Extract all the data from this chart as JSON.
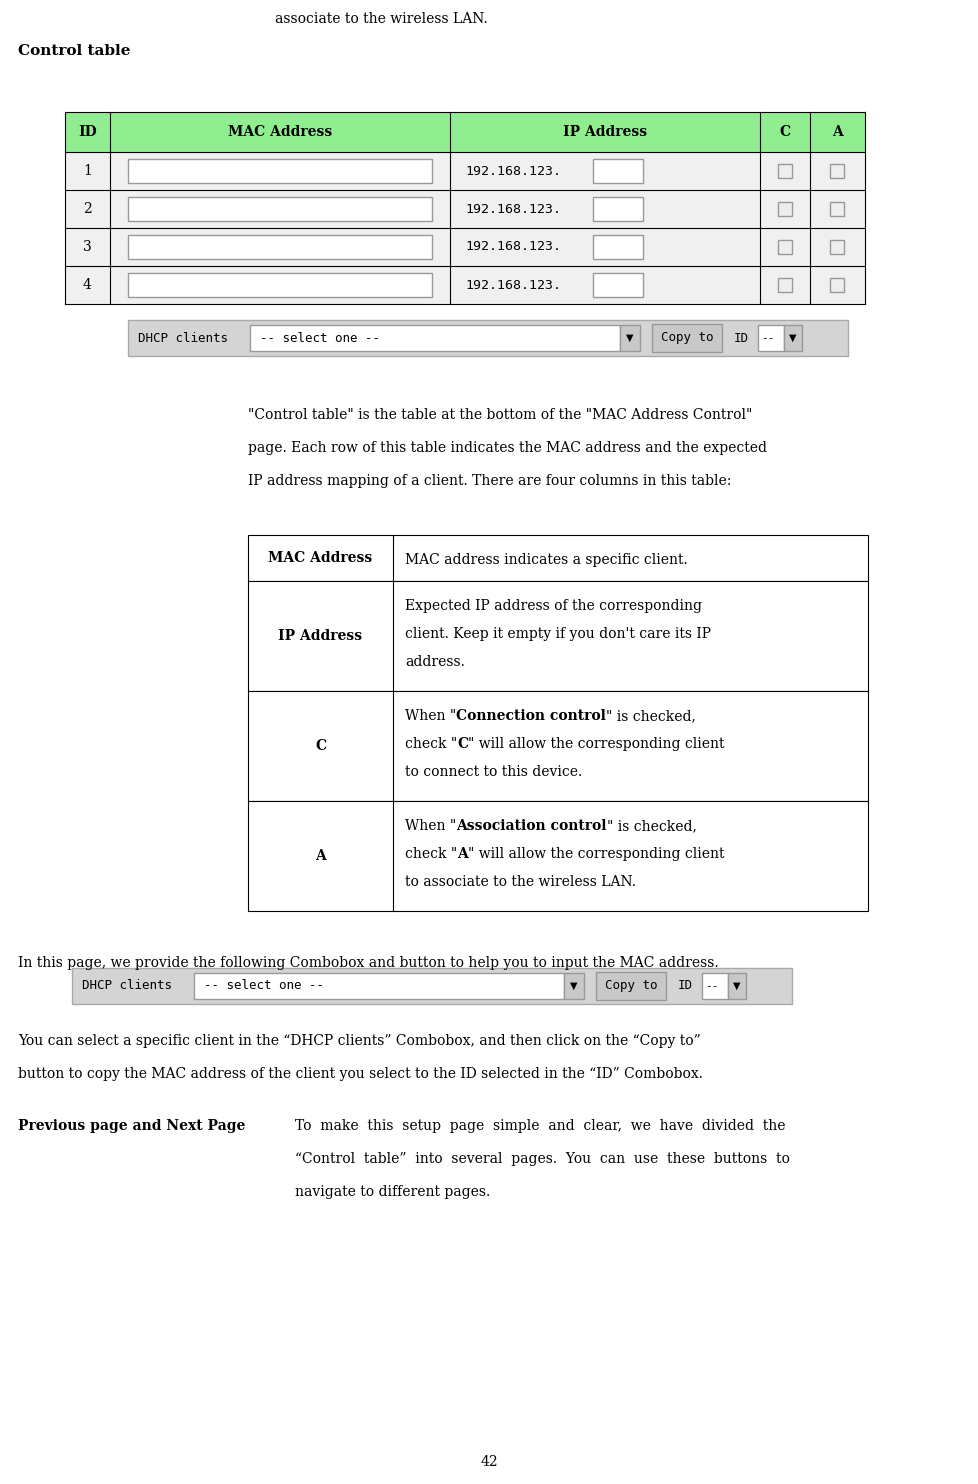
{
  "page_width": 9.79,
  "page_height": 14.84,
  "bg_color": "#ffffff",
  "top_text": "associate to the wireless LAN.",
  "control_table_label": "Control table",
  "header_bg": "#90EE90",
  "header_text_color": "#000000",
  "row_bg": "#f0f0f0",
  "control_table_headers": [
    "ID",
    "MAC Address",
    "IP Address",
    "C",
    "A"
  ],
  "control_table_rows": [
    {
      "id": "1",
      "ip_prefix": "192.168.123."
    },
    {
      "id": "2",
      "ip_prefix": "192.168.123."
    },
    {
      "id": "3",
      "ip_prefix": "192.168.123."
    },
    {
      "id": "4",
      "ip_prefix": "192.168.123."
    }
  ],
  "desc_text_lines": [
    "\"Control table\" is the table at the bottom of the \"MAC Address Control\"",
    "page. Each row of this table indicates the MAC address and the expected",
    "IP address mapping of a client. There are four columns in this table:"
  ],
  "info_table_rows": [
    {
      "label": "MAC Address",
      "label_bold": true,
      "label_italic": false,
      "lines": [
        [
          {
            "t": "MAC address indicates a specific client.",
            "b": false
          }
        ]
      ]
    },
    {
      "label": "IP Address",
      "label_bold": true,
      "label_italic": false,
      "lines": [
        [
          {
            "t": "Expected IP address of the corresponding",
            "b": false
          }
        ],
        [
          {
            "t": "client. Keep it empty if you don't care its IP",
            "b": false
          }
        ],
        [
          {
            "t": "address.",
            "b": false
          }
        ]
      ]
    },
    {
      "label": "C",
      "label_bold": true,
      "label_italic": false,
      "lines": [
        [
          {
            "t": "When \"",
            "b": false
          },
          {
            "t": "Connection control",
            "b": true
          },
          {
            "t": "\" is checked,",
            "b": false
          }
        ],
        [
          {
            "t": "check \"",
            "b": false
          },
          {
            "t": "C",
            "b": true
          },
          {
            "t": "\" will allow the corresponding client",
            "b": false
          }
        ],
        [
          {
            "t": "to connect to this device.",
            "b": false
          }
        ]
      ]
    },
    {
      "label": "A",
      "label_bold": true,
      "label_italic": false,
      "lines": [
        [
          {
            "t": "When \"",
            "b": false
          },
          {
            "t": "Association control",
            "b": true
          },
          {
            "t": "\" is checked,",
            "b": false
          }
        ],
        [
          {
            "t": "check \"",
            "b": false
          },
          {
            "t": "A",
            "b": true
          },
          {
            "t": "\" will allow the corresponding client",
            "b": false
          }
        ],
        [
          {
            "t": "to associate to the wireless LAN.",
            "b": false
          }
        ]
      ]
    }
  ],
  "bottom_text1": "In this page, we provide the following Combobox and button to help you to input the MAC address.",
  "bottom_text2a": "You can select a specific client in the “DHCP clients” Combobox, and then click on the “Copy to”",
  "bottom_text2b": "button to copy the MAC address of the client you select to the ID selected in the “ID” Combobox.",
  "prev_next_label": "Previous page and Next Page",
  "prev_next_lines": [
    "To  make  this  setup  page  simple  and  clear,  we  have  divided  the",
    "“Control  table”  into  several  pages.  You  can  use  these  buttons  to",
    "navigate to different pages."
  ],
  "page_number": "42",
  "fs": 10,
  "fs_small": 9,
  "fs_mono": 9
}
